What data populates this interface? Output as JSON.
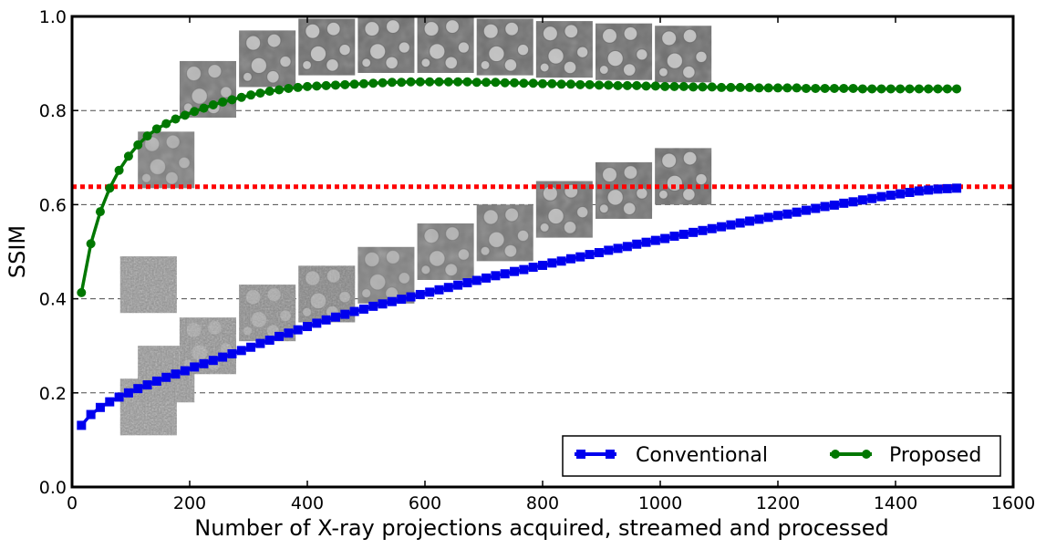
{
  "chart_data": {
    "type": "line",
    "title": "",
    "xlabel": "Number of X-ray projections acquired, streamed and processed",
    "ylabel": "SSIM",
    "xlim": [
      0,
      1600
    ],
    "ylim": [
      0.0,
      1.0
    ],
    "xticks": [
      "0",
      "200",
      "400",
      "600",
      "800",
      "1000",
      "1200",
      "1400",
      "1600"
    ],
    "yticks": [
      "0.0",
      "0.2",
      "0.4",
      "0.6",
      "0.8",
      "1.0"
    ],
    "grid": "horizontal dashed",
    "legend_position": "lower-right",
    "threshold_line": {
      "y": 0.638,
      "style": "dotted",
      "color": "#ff0000"
    },
    "series": [
      {
        "name": "Conventional",
        "color": "#0000ee",
        "marker": "square",
        "x": [
          16,
          32,
          48,
          64,
          80,
          96,
          112,
          128,
          144,
          160,
          176,
          192,
          208,
          224,
          240,
          256,
          272,
          288,
          304,
          320,
          336,
          352,
          368,
          384,
          400,
          416,
          432,
          448,
          464,
          480,
          496,
          512,
          528,
          544,
          560,
          576,
          592,
          608,
          624,
          640,
          656,
          672,
          688,
          704,
          720,
          736,
          752,
          768,
          784,
          800,
          816,
          832,
          848,
          864,
          880,
          896,
          912,
          928,
          944,
          960,
          976,
          992,
          1008,
          1024,
          1040,
          1056,
          1072,
          1088,
          1104,
          1120,
          1136,
          1152,
          1168,
          1184,
          1200,
          1216,
          1232,
          1248,
          1264,
          1280,
          1296,
          1312,
          1328,
          1344,
          1360,
          1376,
          1392,
          1408,
          1424,
          1440,
          1456,
          1472,
          1488,
          1504
        ],
        "values": [
          0.131,
          0.154,
          0.169,
          0.181,
          0.191,
          0.2,
          0.209,
          0.217,
          0.225,
          0.233,
          0.24,
          0.247,
          0.255,
          0.262,
          0.269,
          0.276,
          0.283,
          0.29,
          0.297,
          0.305,
          0.312,
          0.32,
          0.327,
          0.334,
          0.341,
          0.348,
          0.355,
          0.361,
          0.367,
          0.373,
          0.378,
          0.384,
          0.389,
          0.394,
          0.399,
          0.404,
          0.409,
          0.414,
          0.419,
          0.424,
          0.429,
          0.434,
          0.439,
          0.444,
          0.449,
          0.453,
          0.458,
          0.462,
          0.467,
          0.471,
          0.476,
          0.48,
          0.485,
          0.489,
          0.494,
          0.498,
          0.503,
          0.507,
          0.511,
          0.516,
          0.52,
          0.524,
          0.528,
          0.533,
          0.537,
          0.541,
          0.545,
          0.549,
          0.553,
          0.557,
          0.561,
          0.565,
          0.569,
          0.573,
          0.577,
          0.58,
          0.584,
          0.588,
          0.592,
          0.596,
          0.599,
          0.603,
          0.606,
          0.61,
          0.613,
          0.617,
          0.62,
          0.623,
          0.626,
          0.629,
          0.631,
          0.633,
          0.634,
          0.635
        ]
      },
      {
        "name": "Proposed",
        "color": "#007700",
        "marker": "circle",
        "x": [
          16,
          32,
          48,
          64,
          80,
          96,
          112,
          128,
          144,
          160,
          176,
          192,
          208,
          224,
          240,
          256,
          272,
          288,
          304,
          320,
          336,
          352,
          368,
          384,
          400,
          416,
          432,
          448,
          464,
          480,
          496,
          512,
          528,
          544,
          560,
          576,
          592,
          608,
          624,
          640,
          656,
          672,
          688,
          704,
          720,
          736,
          752,
          768,
          784,
          800,
          816,
          832,
          848,
          864,
          880,
          896,
          912,
          928,
          944,
          960,
          976,
          992,
          1008,
          1024,
          1040,
          1056,
          1072,
          1088,
          1104,
          1120,
          1136,
          1152,
          1168,
          1184,
          1200,
          1216,
          1232,
          1248,
          1264,
          1280,
          1296,
          1312,
          1328,
          1344,
          1360,
          1376,
          1392,
          1408,
          1424,
          1440,
          1456,
          1472,
          1488,
          1504
        ],
        "values": [
          0.413,
          0.517,
          0.585,
          0.635,
          0.673,
          0.703,
          0.727,
          0.746,
          0.761,
          0.772,
          0.782,
          0.79,
          0.798,
          0.805,
          0.812,
          0.818,
          0.823,
          0.828,
          0.833,
          0.837,
          0.841,
          0.844,
          0.847,
          0.849,
          0.851,
          0.852,
          0.853,
          0.854,
          0.855,
          0.856,
          0.857,
          0.858,
          0.859,
          0.86,
          0.86,
          0.861,
          0.861,
          0.861,
          0.861,
          0.861,
          0.861,
          0.861,
          0.86,
          0.86,
          0.86,
          0.859,
          0.859,
          0.858,
          0.858,
          0.857,
          0.857,
          0.856,
          0.856,
          0.855,
          0.855,
          0.854,
          0.854,
          0.853,
          0.853,
          0.853,
          0.852,
          0.852,
          0.851,
          0.851,
          0.851,
          0.85,
          0.85,
          0.85,
          0.849,
          0.849,
          0.849,
          0.849,
          0.848,
          0.848,
          0.848,
          0.848,
          0.848,
          0.847,
          0.847,
          0.847,
          0.847,
          0.847,
          0.847,
          0.846,
          0.846,
          0.846,
          0.846,
          0.846,
          0.846,
          0.846,
          0.846,
          0.846,
          0.846,
          0.846
        ]
      }
    ]
  }
}
